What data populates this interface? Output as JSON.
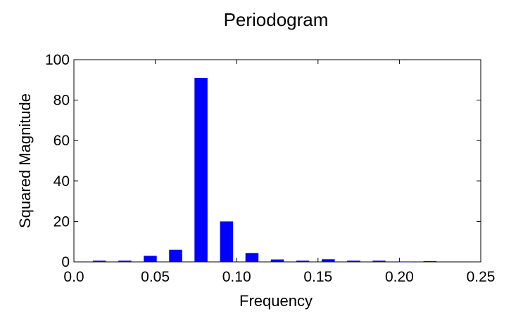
{
  "chart_data": {
    "type": "bar",
    "title": "Periodogram",
    "xlabel": "Frequency",
    "ylabel": "Squared Magnitude",
    "xlim": [
      0.0,
      0.25
    ],
    "ylim": [
      0,
      100
    ],
    "xticks": [
      0.0,
      0.05,
      0.1,
      0.15,
      0.2,
      0.25
    ],
    "xtick_labels": [
      "0.0",
      "0.05",
      "0.10",
      "0.15",
      "0.20",
      "0.25"
    ],
    "yticks": [
      0,
      20,
      40,
      60,
      80,
      100
    ],
    "ytick_labels": [
      "0",
      "20",
      "40",
      "60",
      "80",
      "100"
    ],
    "bar_width": 0.008,
    "grid": false,
    "bar_color": "#0000ff",
    "x": [
      0.0156,
      0.0313,
      0.0469,
      0.0625,
      0.0781,
      0.0938,
      0.1094,
      0.125,
      0.1406,
      0.1563,
      0.1719,
      0.1875,
      0.2031,
      0.2188
    ],
    "values": [
      0.6,
      0.6,
      3.0,
      6.0,
      91.0,
      20.0,
      4.4,
      1.2,
      0.6,
      1.3,
      0.6,
      0.6,
      0.2,
      0.4
    ]
  }
}
